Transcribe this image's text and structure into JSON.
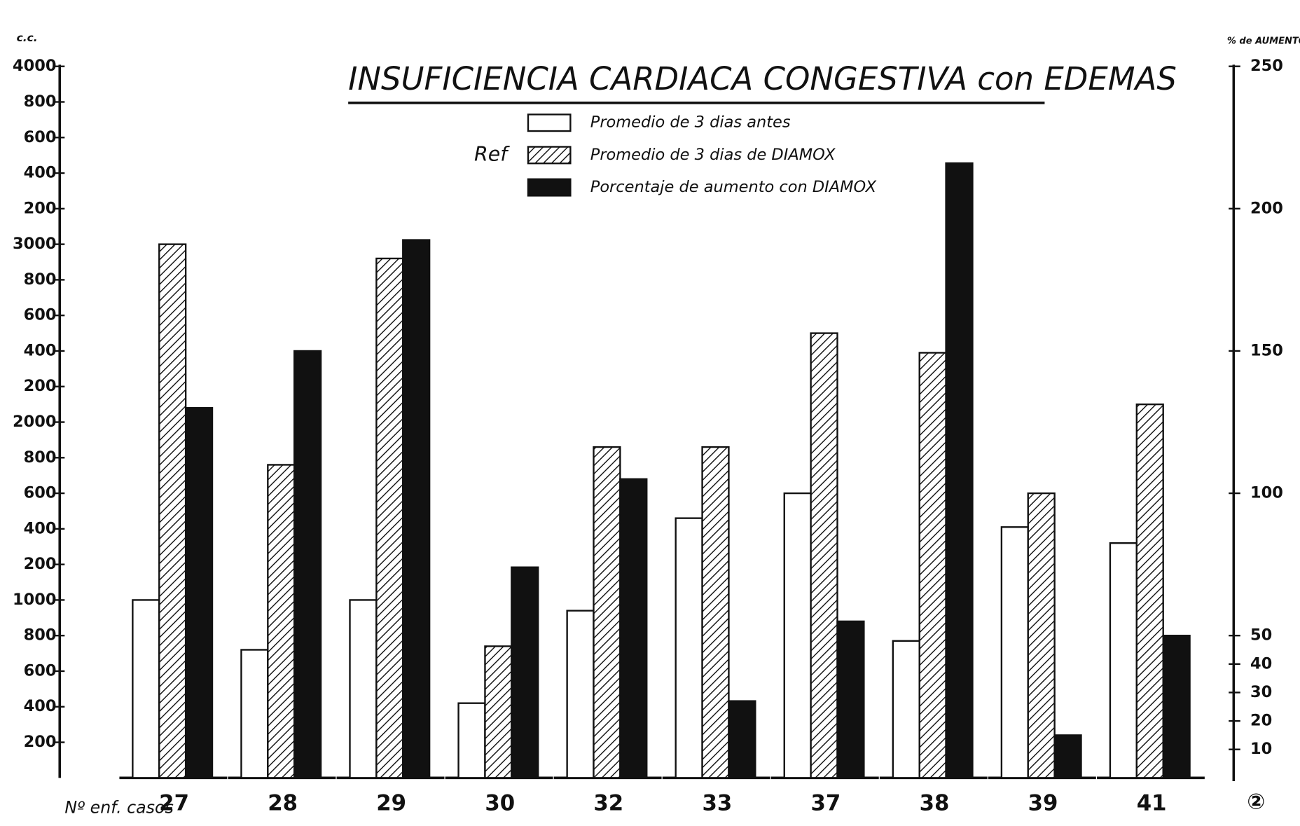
{
  "chart_data": {
    "type": "bar",
    "title": "INSUFICIENCIA CARDIACA CONGESTIVA con EDEMAS",
    "y_axis_label": "c.c.",
    "y2_axis_label": "% de AUMENTO",
    "x_axis_label": "Nº enf. casos",
    "legend_title": "Ref",
    "annotation": "②",
    "categories": [
      "27",
      "28",
      "29",
      "30",
      "32",
      "33",
      "37",
      "38",
      "39",
      "41"
    ],
    "series": [
      {
        "name": "Promedio de 3 dias antes",
        "color": "#ffffff",
        "values": [
          1000,
          720,
          1000,
          420,
          940,
          1460,
          1600,
          770,
          1410,
          1320
        ]
      },
      {
        "name": "Promedio de 3 dias de DIAMOX",
        "color": "#ffffff",
        "hatch": true,
        "values": [
          3000,
          1760,
          2920,
          740,
          1860,
          1860,
          2500,
          2390,
          1600,
          2100
        ]
      },
      {
        "name": "Porcentaje de aumento con DIAMOX",
        "color": "#111111",
        "axis": "y2",
        "values": [
          130,
          150,
          189,
          74,
          105,
          27,
          55,
          216,
          15,
          50
        ]
      }
    ],
    "ylim": [
      0,
      4000
    ],
    "yticks": [
      200,
      400,
      600,
      800,
      1000,
      {
        "value": 1200,
        "label": "200"
      },
      {
        "value": 1400,
        "label": "400"
      },
      {
        "value": 1600,
        "label": "600"
      },
      {
        "value": 1800,
        "label": "800"
      },
      2000,
      {
        "value": 2200,
        "label": "200"
      },
      {
        "value": 2400,
        "label": "400"
      },
      {
        "value": 2600,
        "label": "600"
      },
      {
        "value": 2800,
        "label": "800"
      },
      3000,
      {
        "value": 3200,
        "label": "200"
      },
      {
        "value": 3400,
        "label": "400"
      },
      {
        "value": 3600,
        "label": "600"
      },
      {
        "value": 3800,
        "label": "800"
      },
      4000
    ],
    "y2lim": [
      0,
      250
    ],
    "y2ticks": [
      10,
      20,
      30,
      40,
      50,
      100,
      150,
      200,
      250
    ]
  }
}
